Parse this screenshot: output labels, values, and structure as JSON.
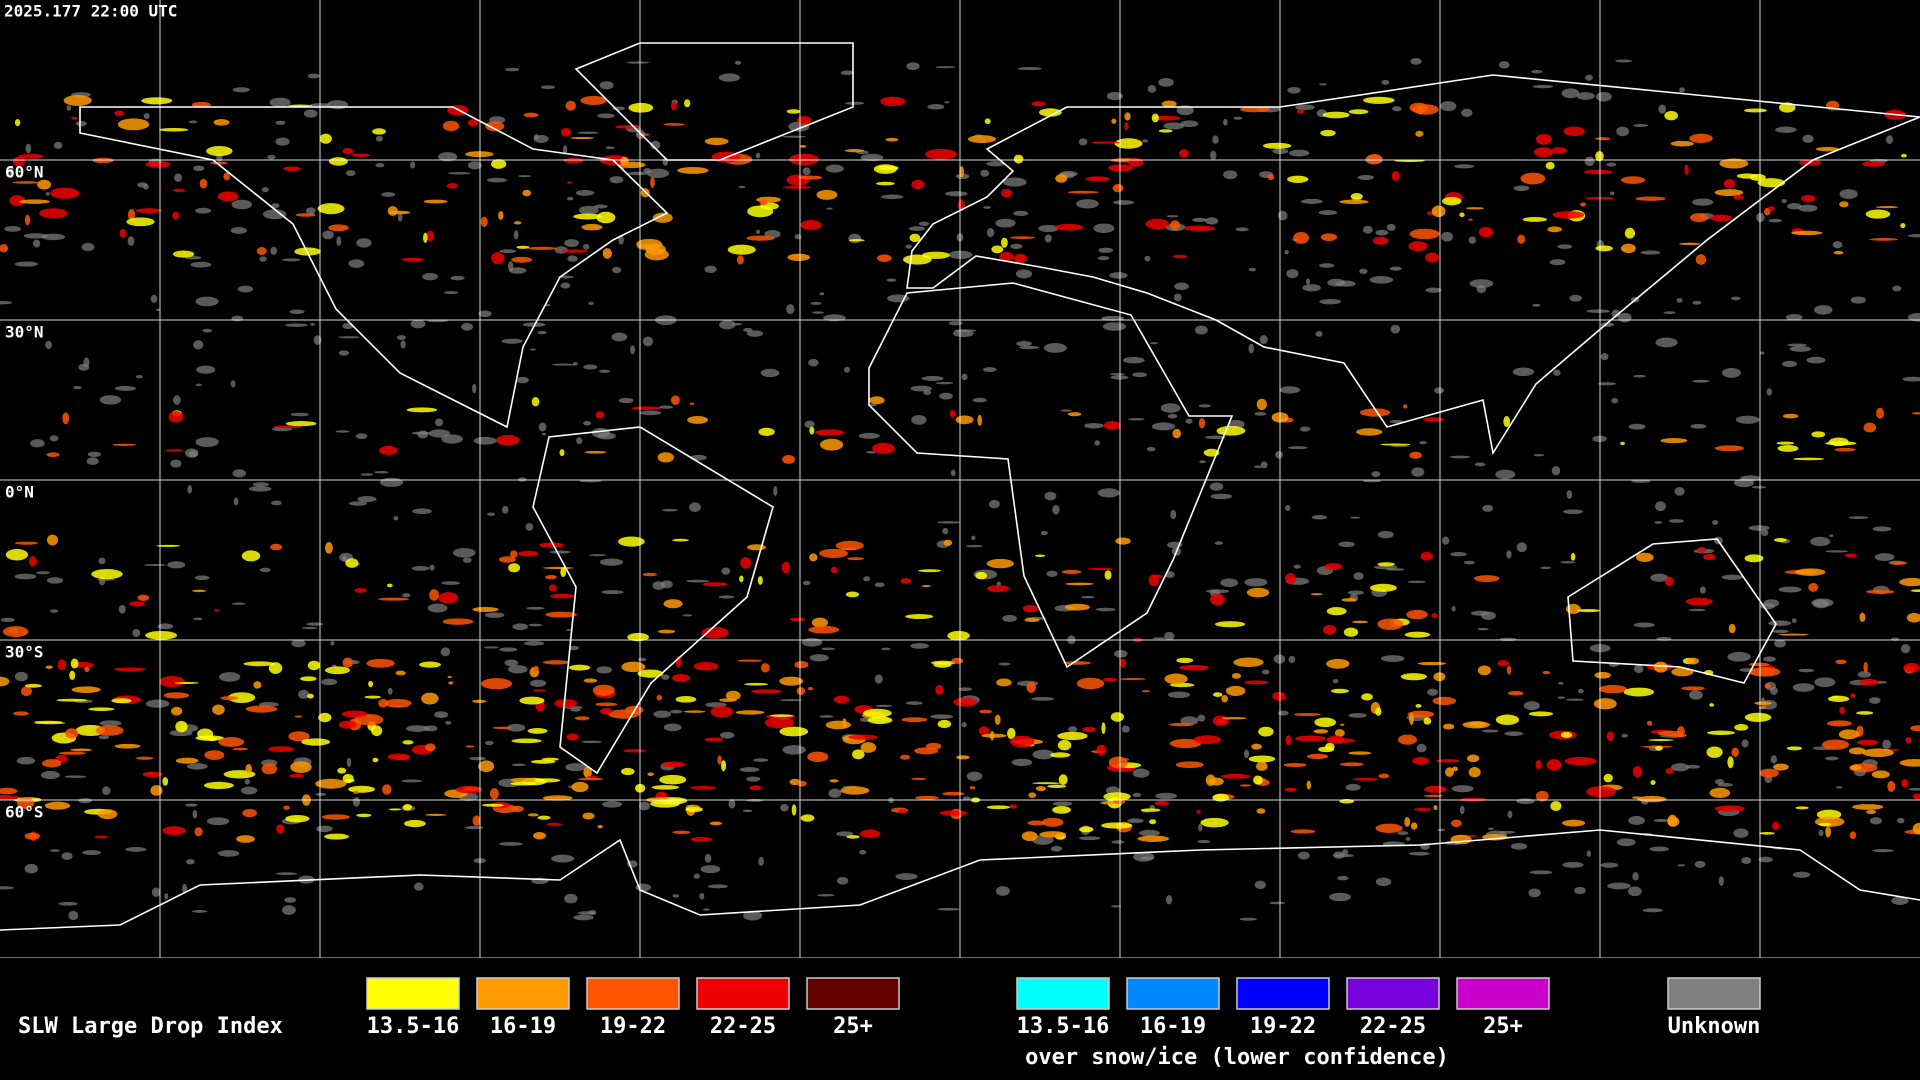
{
  "header": {
    "timestamp": "2025.177 22:00 UTC"
  },
  "map": {
    "latitude_labels": [
      "60°N",
      "30°N",
      "0°N",
      "30°S",
      "60°S"
    ]
  },
  "legend": {
    "title": "SLW Large Drop Index",
    "items": [
      {
        "label": "13.5-16",
        "color": "#ffff00"
      },
      {
        "label": "16-19",
        "color": "#ff9900"
      },
      {
        "label": "19-22",
        "color": "#ff5500"
      },
      {
        "label": "22-25",
        "color": "#ee0000"
      },
      {
        "label": "25+",
        "color": "#660000"
      }
    ],
    "snow_ice_items": [
      {
        "label": "13.5-16",
        "color": "#00ffff"
      },
      {
        "label": "16-19",
        "color": "#0088ff"
      },
      {
        "label": "19-22",
        "color": "#0000ff"
      },
      {
        "label": "22-25",
        "color": "#7700dd"
      },
      {
        "label": "25+",
        "color": "#cc00cc"
      }
    ],
    "snow_ice_note": "over snow/ice (lower confidence)",
    "unknown": {
      "label": "Unknown",
      "color": "#808080"
    }
  }
}
